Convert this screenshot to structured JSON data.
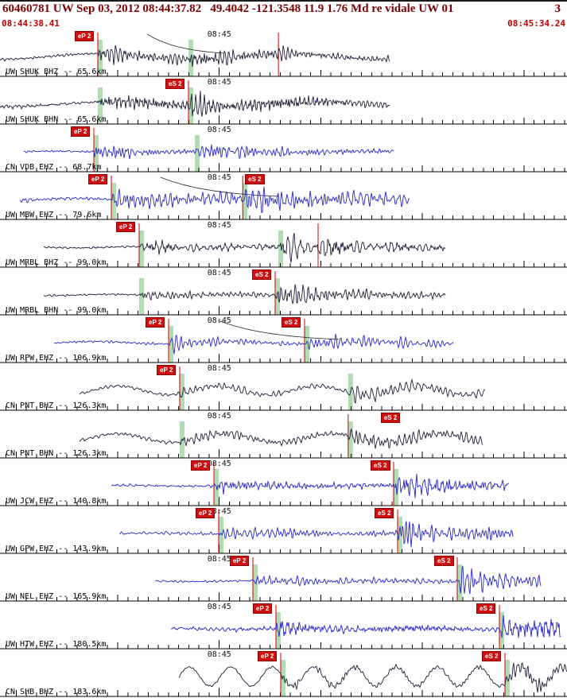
{
  "header": {
    "title": "60460781 UW Sep 03, 2012 08:44:37.82   49.4042 -121.3548 11.9 1.76 Md re vidale UW 01",
    "page": "3",
    "event_id": "60460781",
    "origin_time": "08:44:37.82",
    "latitude": "49.4042",
    "longitude": "-121.3548",
    "depth_km": "11.9",
    "magnitude": "1.76 Md",
    "analyst": "re vidale",
    "source": "UW 01"
  },
  "timebar": {
    "start": "08:44:38.41",
    "end": "08:45:34.24"
  },
  "timeline": {
    "window_start_abs_seconds": 38.41,
    "duration_seconds": 55.83,
    "minute_label": "08:45",
    "minute_abs_second": 60,
    "first_tick_abs_second": 39
  },
  "colors": {
    "dark": "#1b1b38",
    "blue": "#2424cf",
    "pick_red": "#d40000",
    "pick_label_bg": "#cf1010",
    "band_green": "#b4dcb4",
    "header_maroon": "#7d0000",
    "time_red": "#c40000",
    "axis_black": "#000000"
  },
  "traces": [
    {
      "label": "UW SHUK BHZ -- 65.6km",
      "network": "UW",
      "station": "SHUK",
      "channel": "BHZ",
      "distance_km": 65.6,
      "color": "dark",
      "time_label": "08:45",
      "picks": [
        {
          "phase": "eP 2",
          "x": 0.1725,
          "show_label": true
        },
        {
          "phase": "eS 2",
          "x": 0.3324,
          "show_label": false
        }
      ],
      "extra_lines": [
        0.491
      ],
      "decay_curve": true,
      "wave": {
        "x0": 0.0,
        "x1": 0.687,
        "seed": 11,
        "noise": 1.3,
        "p_amp": 10,
        "p_decay": 70,
        "s_amp": 9,
        "s_decay": 90,
        "lf_amp": 3.5,
        "lf_period": 240
      }
    },
    {
      "label": "UW SHUK BHN -- 65.6km",
      "network": "UW",
      "station": "SHUK",
      "channel": "BHN",
      "distance_km": 65.6,
      "color": "dark",
      "time_label": "08:45",
      "picks": [
        {
          "phase": "eP 2",
          "x": 0.1725,
          "show_label": false
        },
        {
          "phase": "eS 2",
          "x": 0.3324,
          "show_label": true
        }
      ],
      "extra_lines": [],
      "decay_curve": false,
      "wave": {
        "x0": 0.0,
        "x1": 0.687,
        "seed": 23,
        "noise": 1.3,
        "p_amp": 8,
        "p_decay": 70,
        "s_amp": 11,
        "s_decay": 90,
        "lf_amp": 3,
        "lf_period": 260
      }
    },
    {
      "label": "CN VDB EHZ -- 68.7km",
      "network": "CN",
      "station": "VDB",
      "channel": "EHZ",
      "distance_km": 68.7,
      "color": "blue",
      "time_label": "08:45",
      "picks": [
        {
          "phase": "eP 2",
          "x": 0.1655,
          "show_label": true
        },
        {
          "phase": "eS 2",
          "x": 0.3436,
          "show_label": false
        }
      ],
      "extra_lines": [],
      "decay_curve": false,
      "wave": {
        "x0": 0.042,
        "x1": 0.694,
        "seed": 37,
        "noise": 1.0,
        "p_amp": 16,
        "p_decay": 32,
        "s_amp": 8,
        "s_decay": 85,
        "lf_amp": 0.8,
        "lf_period": 200
      }
    },
    {
      "label": "UW MBW EHZ -- 79.6km",
      "network": "UW",
      "station": "MBW",
      "channel": "EHZ",
      "distance_km": 79.6,
      "color": "blue",
      "time_label": "08:45",
      "picks": [
        {
          "phase": "eP 2",
          "x": 0.1964,
          "show_label": true
        },
        {
          "phase": "eS 2",
          "x": 0.428,
          "show_label": true,
          "label_dx": 32
        }
      ],
      "extra_lines": [],
      "decay_curve": true,
      "wave": {
        "x0": 0.035,
        "x1": 0.722,
        "seed": 41,
        "noise": 1.8,
        "p_amp": 11,
        "p_decay": 140,
        "s_amp": 12,
        "s_decay": 130,
        "lf_amp": 1.5,
        "lf_period": 180
      }
    },
    {
      "label": "UW MRBL BHZ -- 99.0km",
      "network": "UW",
      "station": "MRBL",
      "channel": "BHZ",
      "distance_km": 99.0,
      "color": "dark",
      "time_label": "08:45",
      "picks": [
        {
          "phase": "eP 2",
          "x": 0.2455,
          "show_label": true
        },
        {
          "phase": "eS 2",
          "x": 0.4909,
          "show_label": false
        }
      ],
      "extra_lines": [
        0.561
      ],
      "decay_curve": false,
      "wave": {
        "x0": 0.077,
        "x1": 0.785,
        "seed": 53,
        "noise": 0.9,
        "p_amp": 4.5,
        "p_decay": 60,
        "s_amp": 12,
        "s_decay": 70,
        "lf_amp": 0.8,
        "lf_period": 150
      }
    },
    {
      "label": "UW MRBL BHN -- 99.0km",
      "network": "UW",
      "station": "MRBL",
      "channel": "BHN",
      "distance_km": 99.0,
      "color": "dark",
      "time_label": "08:45",
      "picks": [
        {
          "phase": "eP 2",
          "x": 0.2455,
          "show_label": false
        },
        {
          "phase": "eS 2",
          "x": 0.4853,
          "show_label": true
        }
      ],
      "extra_lines": [],
      "decay_curve": false,
      "wave": {
        "x0": 0.077,
        "x1": 0.785,
        "seed": 67,
        "noise": 0.9,
        "p_amp": 4,
        "p_decay": 60,
        "s_amp": 13,
        "s_decay": 70,
        "lf_amp": 0.8,
        "lf_period": 155
      }
    },
    {
      "label": "UW RPW EHZ -- 106.9km",
      "network": "UW",
      "station": "RPW",
      "channel": "EHZ",
      "distance_km": 106.9,
      "color": "blue",
      "time_label": "08:45",
      "picks": [
        {
          "phase": "eP 2",
          "x": 0.2974,
          "show_label": true
        },
        {
          "phase": "eS 2",
          "x": 0.5372,
          "show_label": true
        }
      ],
      "extra_lines": [],
      "decay_curve": true,
      "wave": {
        "x0": 0.095,
        "x1": 0.799,
        "seed": 71,
        "noise": 1.2,
        "p_amp": 7,
        "p_decay": 60,
        "s_amp": 9,
        "s_decay": 90,
        "lf_amp": 1.5,
        "lf_period": 170
      }
    },
    {
      "label": "CN PNT BHZ -- 126.3km",
      "network": "CN",
      "station": "PNT",
      "channel": "BHZ",
      "distance_km": 126.3,
      "color": "dark",
      "time_label": "08:45",
      "picks": [
        {
          "phase": "eP 2",
          "x": 0.317,
          "show_label": true
        },
        {
          "phase": "eS 2",
          "x": 0.614,
          "show_label": false
        }
      ],
      "extra_lines": [],
      "decay_curve": false,
      "wave": {
        "x0": 0.14,
        "x1": 0.856,
        "seed": 83,
        "noise": 1.6,
        "p_amp": 5,
        "p_decay": 70,
        "s_amp": 9,
        "s_decay": 90,
        "lf_amp": 5.5,
        "lf_period": 125
      }
    },
    {
      "label": "CN PNT BHN -- 126.3km",
      "network": "CN",
      "station": "PNT",
      "channel": "BHN",
      "distance_km": 126.3,
      "color": "dark",
      "time_label": "08:45",
      "picks": [
        {
          "phase": "eP 2",
          "x": 0.317,
          "show_label": false
        },
        {
          "phase": "eS 2",
          "x": 0.614,
          "show_label": true,
          "label_dx": 70
        }
      ],
      "extra_lines": [],
      "decay_curve": false,
      "wave": {
        "x0": 0.14,
        "x1": 0.851,
        "seed": 97,
        "noise": 1.6,
        "p_amp": 5,
        "p_decay": 70,
        "s_amp": 9,
        "s_decay": 90,
        "lf_amp": 5.5,
        "lf_period": 135
      }
    },
    {
      "label": "UW JCW EHZ -- 140.8km",
      "network": "UW",
      "station": "JCW",
      "channel": "EHZ",
      "distance_km": 140.8,
      "color": "blue",
      "time_label": "08:45",
      "picks": [
        {
          "phase": "eP 2",
          "x": 0.3773,
          "show_label": true
        },
        {
          "phase": "eS 2",
          "x": 0.6943,
          "show_label": true
        }
      ],
      "extra_lines": [],
      "decay_curve": false,
      "wave": {
        "x0": 0.196,
        "x1": 0.898,
        "seed": 103,
        "noise": 1.2,
        "p_amp": 6,
        "p_decay": 50,
        "s_amp": 15,
        "s_decay": 55,
        "lf_amp": 0.5,
        "lf_period": 160
      }
    },
    {
      "label": "UW GPW EHZ -- 143.9km",
      "network": "UW",
      "station": "GPW",
      "channel": "EHZ",
      "distance_km": 143.9,
      "color": "blue",
      "time_label": "08:45",
      "picks": [
        {
          "phase": "eP 2",
          "x": 0.3857,
          "show_label": true
        },
        {
          "phase": "eS 2",
          "x": 0.7013,
          "show_label": true
        }
      ],
      "extra_lines": [],
      "decay_curve": false,
      "wave": {
        "x0": 0.21,
        "x1": 0.905,
        "seed": 113,
        "noise": 1.2,
        "p_amp": 6,
        "p_decay": 50,
        "s_amp": 15,
        "s_decay": 60,
        "lf_amp": 0.5,
        "lf_period": 165
      }
    },
    {
      "label": "UW NEL EHZ -- 165.9km",
      "network": "UW",
      "station": "NEL",
      "channel": "EHZ",
      "distance_km": 165.9,
      "color": "blue",
      "time_label": "08:45",
      "picks": [
        {
          "phase": "eP 2",
          "x": 0.446,
          "show_label": true
        },
        {
          "phase": "eS 2",
          "x": 0.8065,
          "show_label": true
        }
      ],
      "extra_lines": [],
      "decay_curve": false,
      "wave": {
        "x0": 0.273,
        "x1": 0.954,
        "seed": 127,
        "noise": 1.1,
        "p_amp": 5,
        "p_decay": 50,
        "s_amp": 16,
        "s_decay": 55,
        "lf_amp": 0.5,
        "lf_period": 160
      }
    },
    {
      "label": "UW HTW EHZ -- 180.5km",
      "network": "UW",
      "station": "HTW",
      "channel": "EHZ",
      "distance_km": 180.5,
      "color": "blue",
      "time_label": "08:45",
      "picks": [
        {
          "phase": "eP 2",
          "x": 0.4867,
          "show_label": true
        },
        {
          "phase": "eS 2",
          "x": 0.8808,
          "show_label": true
        }
      ],
      "extra_lines": [],
      "decay_curve": false,
      "wave": {
        "x0": 0.302,
        "x1": 0.989,
        "seed": 131,
        "noise": 2.0,
        "p_amp": 6,
        "p_decay": 60,
        "s_amp": 13,
        "s_decay": 75,
        "lf_amp": 0.8,
        "lf_period": 160
      }
    },
    {
      "label": "CN SHB BHZ -- 183.6km",
      "network": "CN",
      "station": "SHB",
      "channel": "BHZ",
      "distance_km": 183.6,
      "color": "dark",
      "time_label": "08:45",
      "picks": [
        {
          "phase": "eP 2",
          "x": 0.4951,
          "show_label": true
        },
        {
          "phase": "eS 2",
          "x": 0.8906,
          "show_label": true
        }
      ],
      "extra_lines": [],
      "decay_curve": false,
      "wave": {
        "x0": 0.316,
        "x1": 1.0,
        "seed": 139,
        "noise": 0.8,
        "p_amp": 2.5,
        "p_decay": 60,
        "s_amp": 11,
        "s_decay": 38,
        "lf_amp": 12,
        "lf_period": 52
      }
    }
  ]
}
